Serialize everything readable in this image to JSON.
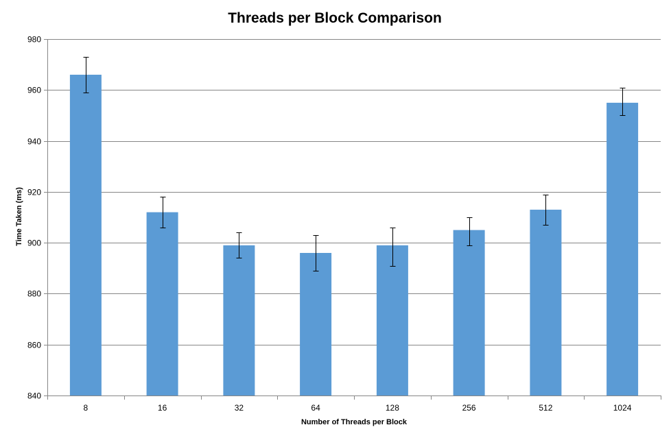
{
  "chart_data": {
    "type": "bar",
    "title": "Threads per Block Comparison",
    "xlabel": "Number of Threads per Block",
    "ylabel": "Time Taken  (ms)",
    "categories": [
      "8",
      "16",
      "32",
      "64",
      "128",
      "256",
      "512",
      "1024"
    ],
    "values": [
      966,
      912,
      899,
      896,
      899,
      905,
      913,
      955
    ],
    "error_low": [
      959,
      906,
      894,
      889,
      891,
      899,
      907,
      950
    ],
    "error_high": [
      973,
      918,
      904,
      903,
      906,
      910,
      919,
      961
    ],
    "ylim": [
      840,
      980
    ],
    "yticks": [
      840,
      860,
      880,
      900,
      920,
      940,
      960,
      980
    ],
    "grid": true,
    "legend": "none",
    "colors": {
      "bar": "#5b9bd5",
      "grid": "#868686",
      "error_bar": "#000000"
    }
  }
}
